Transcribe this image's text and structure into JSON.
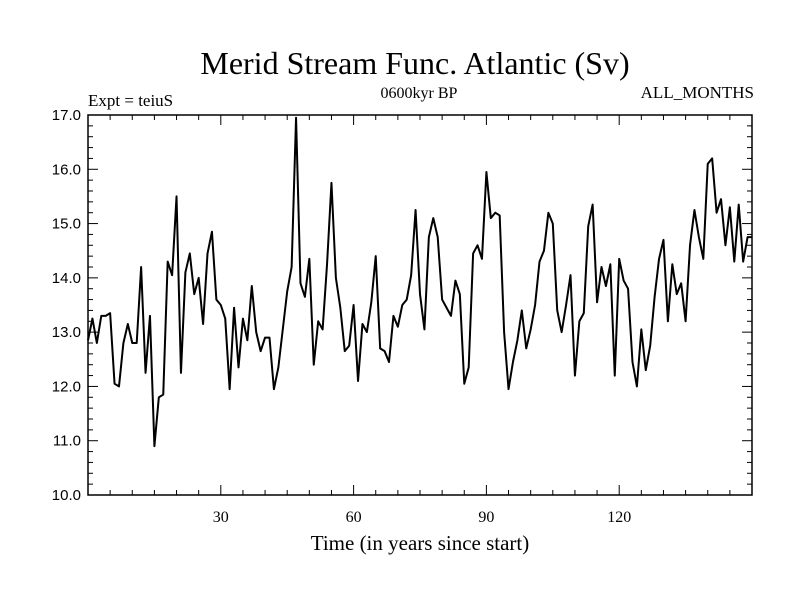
{
  "chart_data": {
    "type": "line",
    "title": "Merid Stream Func. Atlantic (Sv)",
    "subtitle_left": "Expt = teiuS",
    "subtitle_center": "0600kyr BP",
    "subtitle_right": "ALL_MONTHS",
    "xlabel": "Time (in years since start)",
    "ylabel": "",
    "xlim": [
      0,
      150
    ],
    "ylim": [
      10.0,
      17.0
    ],
    "xticks": [
      30,
      60,
      90,
      120
    ],
    "xtick_labels": [
      "30",
      "60",
      "90",
      "120"
    ],
    "yticks": [
      10.0,
      11.0,
      12.0,
      13.0,
      14.0,
      15.0,
      16.0,
      17.0
    ],
    "ytick_labels": [
      "10.0",
      "11.0",
      "12.0",
      "13.0",
      "14.0",
      "15.0",
      "16.0",
      "17.0"
    ],
    "grid": false,
    "series": [
      {
        "name": "Merid Stream Func. Atlantic",
        "x": [
          0,
          1,
          2,
          3,
          4,
          5,
          6,
          7,
          8,
          9,
          10,
          11,
          12,
          13,
          14,
          15,
          16,
          17,
          18,
          19,
          20,
          21,
          22,
          23,
          24,
          25,
          26,
          27,
          28,
          29,
          30,
          31,
          32,
          33,
          34,
          35,
          36,
          37,
          38,
          39,
          40,
          41,
          42,
          43,
          44,
          45,
          46,
          47,
          48,
          49,
          50,
          51,
          52,
          53,
          54,
          55,
          56,
          57,
          58,
          59,
          60,
          61,
          62,
          63,
          64,
          65,
          66,
          67,
          68,
          69,
          70,
          71,
          72,
          73,
          74,
          75,
          76,
          77,
          78,
          79,
          80,
          81,
          82,
          83,
          84,
          85,
          86,
          87,
          88,
          89,
          90,
          91,
          92,
          93,
          94,
          95,
          96,
          97,
          98,
          99,
          100,
          101,
          102,
          103,
          104,
          105,
          106,
          107,
          108,
          109,
          110,
          111,
          112,
          113,
          114,
          115,
          116,
          117,
          118,
          119,
          120,
          121,
          122,
          123,
          124,
          125,
          126,
          127,
          128,
          129,
          130,
          131,
          132,
          133,
          134,
          135,
          136,
          137,
          138,
          139,
          140,
          141,
          142,
          143,
          144,
          145,
          146,
          147,
          148,
          149,
          150
        ],
        "values": [
          12.85,
          13.25,
          12.8,
          13.3,
          13.3,
          13.35,
          12.05,
          12.0,
          12.8,
          13.15,
          12.8,
          12.8,
          14.2,
          12.25,
          13.3,
          10.9,
          11.8,
          11.85,
          14.3,
          14.05,
          15.5,
          12.25,
          14.1,
          14.45,
          13.7,
          14.0,
          13.15,
          14.45,
          14.85,
          13.6,
          13.5,
          13.25,
          11.95,
          13.45,
          12.35,
          13.25,
          12.85,
          13.85,
          13.0,
          12.65,
          12.9,
          12.9,
          11.95,
          12.35,
          13.05,
          13.75,
          14.2,
          16.95,
          13.9,
          13.65,
          14.35,
          12.4,
          13.2,
          13.05,
          14.25,
          15.75,
          14.0,
          13.45,
          12.65,
          12.75,
          13.5,
          12.1,
          13.15,
          13.0,
          13.55,
          14.4,
          12.7,
          12.65,
          12.45,
          13.3,
          13.1,
          13.5,
          13.6,
          14.05,
          15.25,
          13.7,
          13.05,
          14.75,
          15.1,
          14.75,
          13.6,
          13.45,
          13.3,
          13.95,
          13.7,
          12.05,
          12.35,
          14.45,
          14.6,
          14.35,
          15.95,
          15.1,
          15.2,
          15.15,
          13.0,
          11.95,
          12.45,
          12.85,
          13.4,
          12.7,
          13.05,
          13.5,
          14.3,
          14.5,
          15.2,
          15.0,
          13.4,
          13.0,
          13.5,
          14.05,
          12.2,
          13.2,
          13.35,
          14.95,
          15.35,
          13.55,
          14.2,
          13.85,
          14.25,
          12.2,
          14.35,
          13.95,
          13.8,
          12.45,
          12.0,
          13.05,
          12.3,
          12.75,
          13.65,
          14.35,
          14.7,
          13.2,
          14.25,
          13.7,
          13.9,
          13.2,
          14.6,
          15.25,
          14.75,
          14.35,
          16.1,
          16.2,
          15.2,
          15.45,
          14.6,
          15.3,
          14.3,
          15.35,
          14.3,
          14.75,
          14.75
        ]
      }
    ]
  }
}
